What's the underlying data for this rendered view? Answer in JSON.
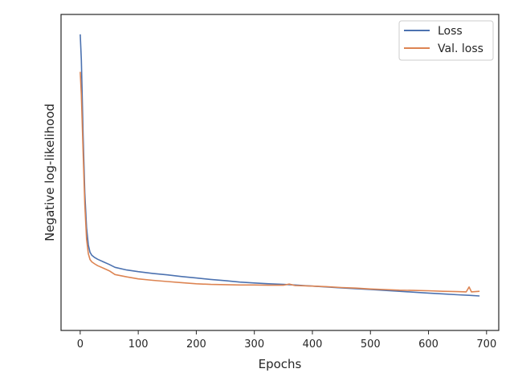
{
  "chart_data": {
    "type": "line",
    "title": "",
    "xlabel": "Epochs",
    "ylabel": "Negative log-likelihood",
    "xlim": [
      -33,
      721
    ],
    "ylim": [
      0,
      1
    ],
    "xticks": [
      0,
      100,
      200,
      300,
      400,
      500,
      600,
      700
    ],
    "yticks": [],
    "grid": false,
    "legend_position": "top-right",
    "series": [
      {
        "name": "Loss",
        "color": "#4c72b0",
        "points": [
          [
            0,
            0.97
          ],
          [
            2,
            0.88
          ],
          [
            5,
            0.62
          ],
          [
            8,
            0.42
          ],
          [
            11,
            0.3
          ],
          [
            14,
            0.24
          ],
          [
            17,
            0.215
          ],
          [
            20,
            0.205
          ],
          [
            25,
            0.197
          ],
          [
            30,
            0.191
          ],
          [
            40,
            0.182
          ],
          [
            50,
            0.173
          ],
          [
            60,
            0.163
          ],
          [
            80,
            0.154
          ],
          [
            100,
            0.148
          ],
          [
            125,
            0.142
          ],
          [
            150,
            0.137
          ],
          [
            175,
            0.131
          ],
          [
            200,
            0.126
          ],
          [
            225,
            0.121
          ],
          [
            250,
            0.117
          ],
          [
            275,
            0.112
          ],
          [
            300,
            0.109
          ],
          [
            325,
            0.106
          ],
          [
            350,
            0.104
          ],
          [
            375,
            0.101
          ],
          [
            400,
            0.098
          ],
          [
            425,
            0.095
          ],
          [
            450,
            0.092
          ],
          [
            475,
            0.089
          ],
          [
            500,
            0.086
          ],
          [
            525,
            0.083
          ],
          [
            550,
            0.08
          ],
          [
            575,
            0.077
          ],
          [
            600,
            0.074
          ],
          [
            625,
            0.071
          ],
          [
            650,
            0.068
          ],
          [
            670,
            0.066
          ],
          [
            688,
            0.064
          ]
        ]
      },
      {
        "name": "Val. loss",
        "color": "#dd8452",
        "points": [
          [
            0,
            0.84
          ],
          [
            2,
            0.76
          ],
          [
            5,
            0.56
          ],
          [
            8,
            0.38
          ],
          [
            11,
            0.26
          ],
          [
            14,
            0.21
          ],
          [
            17,
            0.19
          ],
          [
            20,
            0.182
          ],
          [
            25,
            0.175
          ],
          [
            30,
            0.169
          ],
          [
            40,
            0.16
          ],
          [
            50,
            0.151
          ],
          [
            60,
            0.138
          ],
          [
            80,
            0.13
          ],
          [
            100,
            0.123
          ],
          [
            125,
            0.118
          ],
          [
            150,
            0.114
          ],
          [
            175,
            0.11
          ],
          [
            200,
            0.106
          ],
          [
            225,
            0.104
          ],
          [
            250,
            0.103
          ],
          [
            275,
            0.102
          ],
          [
            300,
            0.102
          ],
          [
            325,
            0.101
          ],
          [
            350,
            0.101
          ],
          [
            360,
            0.105
          ],
          [
            370,
            0.1
          ],
          [
            400,
            0.098
          ],
          [
            425,
            0.096
          ],
          [
            450,
            0.093
          ],
          [
            475,
            0.091
          ],
          [
            500,
            0.088
          ],
          [
            525,
            0.086
          ],
          [
            550,
            0.084
          ],
          [
            575,
            0.083
          ],
          [
            600,
            0.082
          ],
          [
            625,
            0.08
          ],
          [
            650,
            0.079
          ],
          [
            665,
            0.078
          ],
          [
            670,
            0.095
          ],
          [
            674,
            0.078
          ],
          [
            688,
            0.08
          ]
        ]
      }
    ]
  }
}
